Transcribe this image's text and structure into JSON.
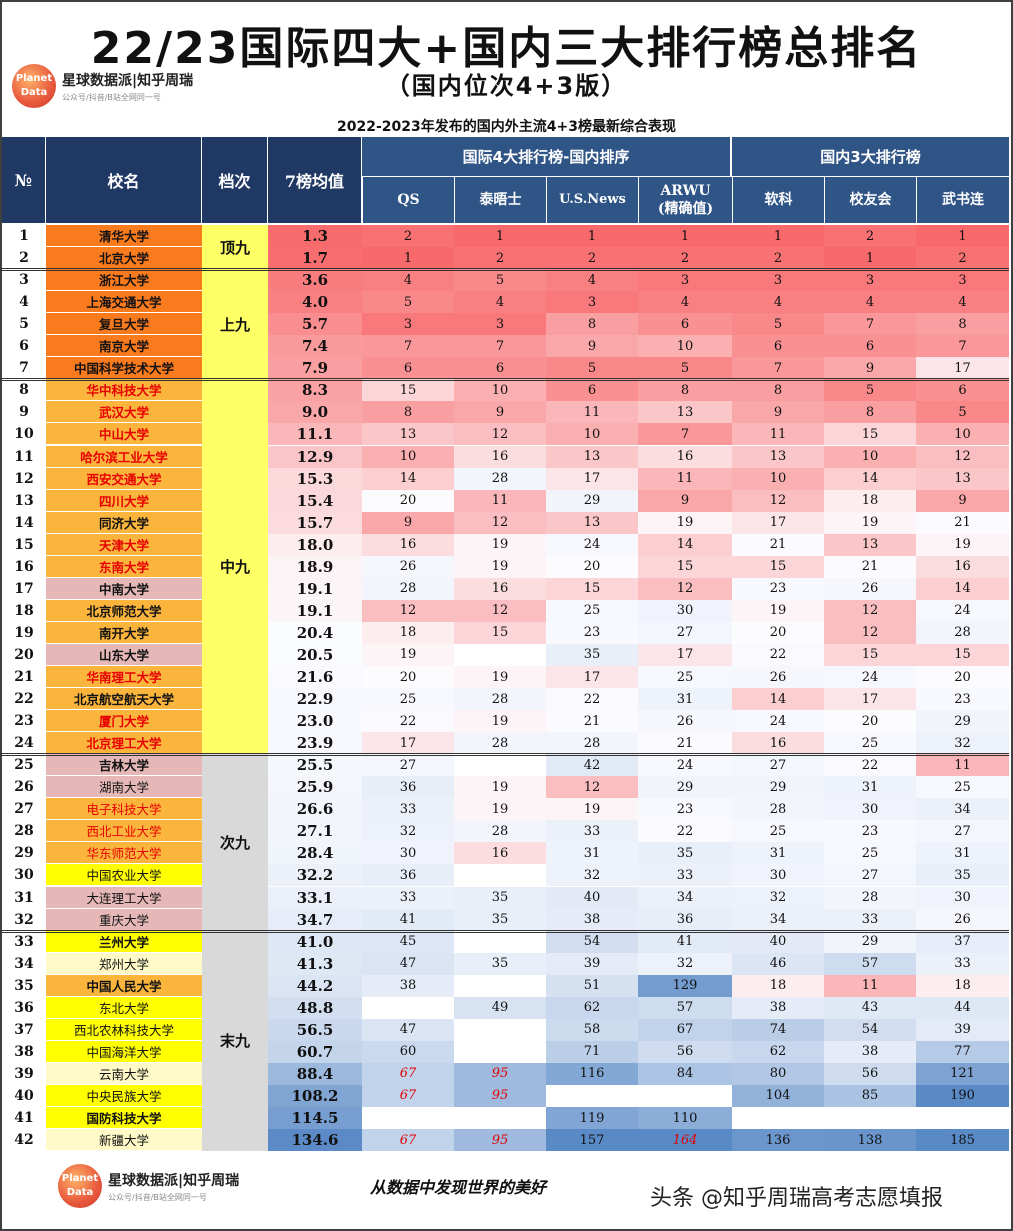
{
  "header": {
    "title": "22/23国际四大+国内三大排行榜总排名",
    "subtitle": "（国内位次4+3版）",
    "caption": "2022-2023年发布的国内外主流4+3榜最新综合表现",
    "logo_line1": "Planet",
    "logo_line2": "Data",
    "logo_main": "星球数据派|知乎周瑞",
    "logo_sub": "公众号/抖音/B站全网同一号"
  },
  "columns": {
    "no": "№",
    "name": "校名",
    "tier": "档次",
    "avg": "7榜均值",
    "group_intl": "国际4大排行榜-国内排序",
    "group_dom": "国内3大排行榜",
    "qs": "QS",
    "the": "泰晤士",
    "usnews": "U.S.News",
    "arwu": "ARWU\n(精确值)",
    "rk": "软科",
    "xyh": "校友会",
    "wsl": "武书连"
  },
  "tiers": [
    {
      "label": "顶九",
      "from": 1,
      "to": 2
    },
    {
      "label": "上九",
      "from": 3,
      "to": 7
    },
    {
      "label": "中九",
      "from": 8,
      "to": 24
    },
    {
      "label": "次九",
      "from": 25,
      "to": 32
    },
    {
      "label": "末九",
      "from": 33,
      "to": 42
    }
  ],
  "colors": {
    "header_dark": "#203864",
    "header_mid": "#2f5486",
    "name_orange": "#fa7a1e",
    "name_light_orange": "#fbb43c",
    "name_pink": "#e5b8b7",
    "name_yellow": "#ffff00",
    "name_cream": "#fffac8",
    "name_text_red": "#e60000",
    "tier_yellow": "#ffff66",
    "tier_gray": "#d9d9d9",
    "heat_low": "#f8696b",
    "heat_mid": "#fcfcff",
    "heat_high": "#5a8ac6"
  },
  "footer": {
    "slogan": "从数据中发现世界的美好",
    "source": "头条 @知乎周瑞高考志愿填报"
  },
  "chart_data": {
    "type": "table",
    "title": "22/23国际四大+国内三大排行榜总排名",
    "columns": [
      "№",
      "校名",
      "档次",
      "7榜均值",
      "QS",
      "泰晤士",
      "U.S.News",
      "ARWU(精确值)",
      "软科",
      "校友会",
      "武书连"
    ],
    "rows": [
      {
        "no": 1,
        "name": "清华大学",
        "avg": "1.3",
        "qs": "2",
        "the": "1",
        "usn": "1",
        "arwu": "1",
        "rk": "1",
        "xyh": "2",
        "wsl": "1",
        "style": "orange"
      },
      {
        "no": 2,
        "name": "北京大学",
        "avg": "1.7",
        "qs": "1",
        "the": "2",
        "usn": "2",
        "arwu": "2",
        "rk": "2",
        "xyh": "1",
        "wsl": "2",
        "style": "orange"
      },
      {
        "no": 3,
        "name": "浙江大学",
        "avg": "3.6",
        "qs": "4",
        "the": "5",
        "usn": "4",
        "arwu": "3",
        "rk": "3",
        "xyh": "3",
        "wsl": "3",
        "style": "orange"
      },
      {
        "no": 4,
        "name": "上海交通大学",
        "avg": "4.0",
        "qs": "5",
        "the": "4",
        "usn": "3",
        "arwu": "4",
        "rk": "4",
        "xyh": "4",
        "wsl": "4",
        "style": "orange"
      },
      {
        "no": 5,
        "name": "复旦大学",
        "avg": "5.7",
        "qs": "3",
        "the": "3",
        "usn": "8",
        "arwu": "6",
        "rk": "5",
        "xyh": "7",
        "wsl": "8",
        "style": "orange"
      },
      {
        "no": 6,
        "name": "南京大学",
        "avg": "7.4",
        "qs": "7",
        "the": "7",
        "usn": "9",
        "arwu": "10",
        "rk": "6",
        "xyh": "6",
        "wsl": "7",
        "style": "orange"
      },
      {
        "no": 7,
        "name": "中国科学技术大学",
        "avg": "7.9",
        "qs": "6",
        "the": "6",
        "usn": "5",
        "arwu": "5",
        "rk": "7",
        "xyh": "9",
        "wsl": "17",
        "style": "orange"
      },
      {
        "no": 8,
        "name": "华中科技大学",
        "avg": "8.3",
        "qs": "15",
        "the": "10",
        "usn": "6",
        "arwu": "8",
        "rk": "8",
        "xyh": "5",
        "wsl": "6",
        "style": "lorange-red"
      },
      {
        "no": 9,
        "name": "武汉大学",
        "avg": "9.0",
        "qs": "8",
        "the": "9",
        "usn": "11",
        "arwu": "13",
        "rk": "9",
        "xyh": "8",
        "wsl": "5",
        "style": "lorange-red"
      },
      {
        "no": 10,
        "name": "中山大学",
        "avg": "11.1",
        "qs": "13",
        "the": "12",
        "usn": "10",
        "arwu": "7",
        "rk": "11",
        "xyh": "15",
        "wsl": "10",
        "style": "lorange-red"
      },
      {
        "no": 11,
        "name": "哈尔滨工业大学",
        "avg": "12.9",
        "qs": "10",
        "the": "16",
        "usn": "13",
        "arwu": "16",
        "rk": "13",
        "xyh": "10",
        "wsl": "12",
        "style": "lorange-red"
      },
      {
        "no": 12,
        "name": "西安交通大学",
        "avg": "15.3",
        "qs": "14",
        "the": "28",
        "usn": "17",
        "arwu": "11",
        "rk": "10",
        "xyh": "14",
        "wsl": "13",
        "style": "lorange-red"
      },
      {
        "no": 13,
        "name": "四川大学",
        "avg": "15.4",
        "qs": "20",
        "the": "11",
        "usn": "29",
        "arwu": "9",
        "rk": "12",
        "xyh": "18",
        "wsl": "9",
        "style": "lorange-red"
      },
      {
        "no": 14,
        "name": "同济大学",
        "avg": "15.7",
        "qs": "9",
        "the": "12",
        "usn": "13",
        "arwu": "19",
        "rk": "17",
        "xyh": "19",
        "wsl": "21",
        "style": "lorange"
      },
      {
        "no": 15,
        "name": "天津大学",
        "avg": "18.0",
        "qs": "16",
        "the": "19",
        "usn": "24",
        "arwu": "14",
        "rk": "21",
        "xyh": "13",
        "wsl": "19",
        "style": "lorange-red"
      },
      {
        "no": 16,
        "name": "东南大学",
        "avg": "18.9",
        "qs": "26",
        "the": "19",
        "usn": "20",
        "arwu": "15",
        "rk": "15",
        "xyh": "21",
        "wsl": "16",
        "style": "lorange-red"
      },
      {
        "no": 17,
        "name": "中南大学",
        "avg": "19.1",
        "qs": "28",
        "the": "16",
        "usn": "15",
        "arwu": "12",
        "rk": "23",
        "xyh": "26",
        "wsl": "14",
        "style": "pink"
      },
      {
        "no": 18,
        "name": "北京师范大学",
        "avg": "19.1",
        "qs": "12",
        "the": "12",
        "usn": "25",
        "arwu": "30",
        "rk": "19",
        "xyh": "12",
        "wsl": "24",
        "style": "lorange"
      },
      {
        "no": 19,
        "name": "南开大学",
        "avg": "20.4",
        "qs": "18",
        "the": "15",
        "usn": "23",
        "arwu": "27",
        "rk": "20",
        "xyh": "12",
        "wsl": "28",
        "style": "lorange"
      },
      {
        "no": 20,
        "name": "山东大学",
        "avg": "20.5",
        "qs": "19",
        "the": "",
        "usn": "35",
        "arwu": "17",
        "rk": "22",
        "xyh": "15",
        "wsl": "15",
        "style": "pink"
      },
      {
        "no": 21,
        "name": "华南理工大学",
        "avg": "21.6",
        "qs": "20",
        "the": "19",
        "usn": "17",
        "arwu": "25",
        "rk": "26",
        "xyh": "24",
        "wsl": "20",
        "style": "lorange-red"
      },
      {
        "no": 22,
        "name": "北京航空航天大学",
        "avg": "22.9",
        "qs": "25",
        "the": "28",
        "usn": "22",
        "arwu": "31",
        "rk": "14",
        "xyh": "17",
        "wsl": "23",
        "style": "lorange"
      },
      {
        "no": 23,
        "name": "厦门大学",
        "avg": "23.0",
        "qs": "22",
        "the": "19",
        "usn": "21",
        "arwu": "26",
        "rk": "24",
        "xyh": "20",
        "wsl": "29",
        "style": "lorange-red"
      },
      {
        "no": 24,
        "name": "北京理工大学",
        "avg": "23.9",
        "qs": "17",
        "the": "28",
        "usn": "28",
        "arwu": "21",
        "rk": "16",
        "xyh": "25",
        "wsl": "32",
        "style": "lorange-red"
      },
      {
        "no": 25,
        "name": "吉林大学",
        "avg": "25.5",
        "qs": "27",
        "the": "",
        "usn": "42",
        "arwu": "24",
        "rk": "27",
        "xyh": "22",
        "wsl": "11",
        "style": "pink"
      },
      {
        "no": 26,
        "name": "湖南大学",
        "avg": "25.9",
        "qs": "36",
        "the": "19",
        "usn": "12",
        "arwu": "29",
        "rk": "29",
        "xyh": "31",
        "wsl": "25",
        "style": "pink-thin"
      },
      {
        "no": 27,
        "name": "电子科技大学",
        "avg": "26.6",
        "qs": "33",
        "the": "19",
        "usn": "19",
        "arwu": "23",
        "rk": "28",
        "xyh": "30",
        "wsl": "34",
        "style": "lorange-red-thin"
      },
      {
        "no": 28,
        "name": "西北工业大学",
        "avg": "27.1",
        "qs": "32",
        "the": "28",
        "usn": "33",
        "arwu": "22",
        "rk": "25",
        "xyh": "23",
        "wsl": "27",
        "style": "lorange-red-thin"
      },
      {
        "no": 29,
        "name": "华东师范大学",
        "avg": "28.4",
        "qs": "30",
        "the": "16",
        "usn": "31",
        "arwu": "35",
        "rk": "31",
        "xyh": "25",
        "wsl": "31",
        "style": "lorange-red-thin"
      },
      {
        "no": 30,
        "name": "中国农业大学",
        "avg": "32.2",
        "qs": "36",
        "the": "",
        "usn": "32",
        "arwu": "33",
        "rk": "30",
        "xyh": "27",
        "wsl": "35",
        "style": "yellow-thin"
      },
      {
        "no": 31,
        "name": "大连理工大学",
        "avg": "33.1",
        "qs": "33",
        "the": "35",
        "usn": "40",
        "arwu": "34",
        "rk": "32",
        "xyh": "28",
        "wsl": "30",
        "style": "pink-thin"
      },
      {
        "no": 32,
        "name": "重庆大学",
        "avg": "34.7",
        "qs": "41",
        "the": "35",
        "usn": "38",
        "arwu": "36",
        "rk": "34",
        "xyh": "33",
        "wsl": "26",
        "style": "pink-thin"
      },
      {
        "no": 33,
        "name": "兰州大学",
        "avg": "41.0",
        "qs": "45",
        "the": "",
        "usn": "54",
        "arwu": "41",
        "rk": "40",
        "xyh": "29",
        "wsl": "37",
        "style": "yellow"
      },
      {
        "no": 34,
        "name": "郑州大学",
        "avg": "41.3",
        "qs": "47",
        "the": "35",
        "usn": "39",
        "arwu": "32",
        "rk": "46",
        "xyh": "57",
        "wsl": "33",
        "style": "cream-thin"
      },
      {
        "no": 35,
        "name": "中国人民大学",
        "avg": "44.2",
        "qs": "38",
        "the": "",
        "usn": "51",
        "arwu": "129",
        "rk": "18",
        "xyh": "11",
        "wsl": "18",
        "style": "lorange"
      },
      {
        "no": 36,
        "name": "东北大学",
        "avg": "48.8",
        "qs": "",
        "the": "49",
        "usn": "62",
        "arwu": "57",
        "rk": "38",
        "xyh": "43",
        "wsl": "44",
        "style": "yellow-thin"
      },
      {
        "no": 37,
        "name": "西北农林科技大学",
        "avg": "56.5",
        "qs": "47",
        "the": "",
        "usn": "58",
        "arwu": "67",
        "rk": "74",
        "xyh": "54",
        "wsl": "39",
        "style": "yellow-thin"
      },
      {
        "no": 38,
        "name": "中国海洋大学",
        "avg": "60.7",
        "qs": "60",
        "the": "",
        "usn": "71",
        "arwu": "56",
        "rk": "62",
        "xyh": "38",
        "wsl": "77",
        "style": "yellow-thin"
      },
      {
        "no": 39,
        "name": "云南大学",
        "avg": "88.4",
        "qs": "67",
        "the": "95",
        "usn": "116",
        "arwu": "84",
        "rk": "80",
        "xyh": "56",
        "wsl": "121",
        "style": "cream-thin",
        "est": [
          "qs",
          "the"
        ]
      },
      {
        "no": 40,
        "name": "中央民族大学",
        "avg": "108.2",
        "qs": "67",
        "the": "95",
        "usn": "",
        "arwu": "",
        "rk": "104",
        "xyh": "85",
        "wsl": "190",
        "style": "yellow-thin",
        "est": [
          "qs",
          "the"
        ]
      },
      {
        "no": 41,
        "name": "国防科技大学",
        "avg": "114.5",
        "qs": "",
        "the": "",
        "usn": "119",
        "arwu": "110",
        "rk": "",
        "xyh": "",
        "wsl": "",
        "style": "yellow"
      },
      {
        "no": 42,
        "name": "新疆大学",
        "avg": "134.6",
        "qs": "67",
        "the": "95",
        "usn": "157",
        "arwu": "164",
        "rk": "136",
        "xyh": "138",
        "wsl": "185",
        "style": "cream-thin",
        "est": [
          "qs",
          "the",
          "arwu"
        ]
      }
    ]
  }
}
